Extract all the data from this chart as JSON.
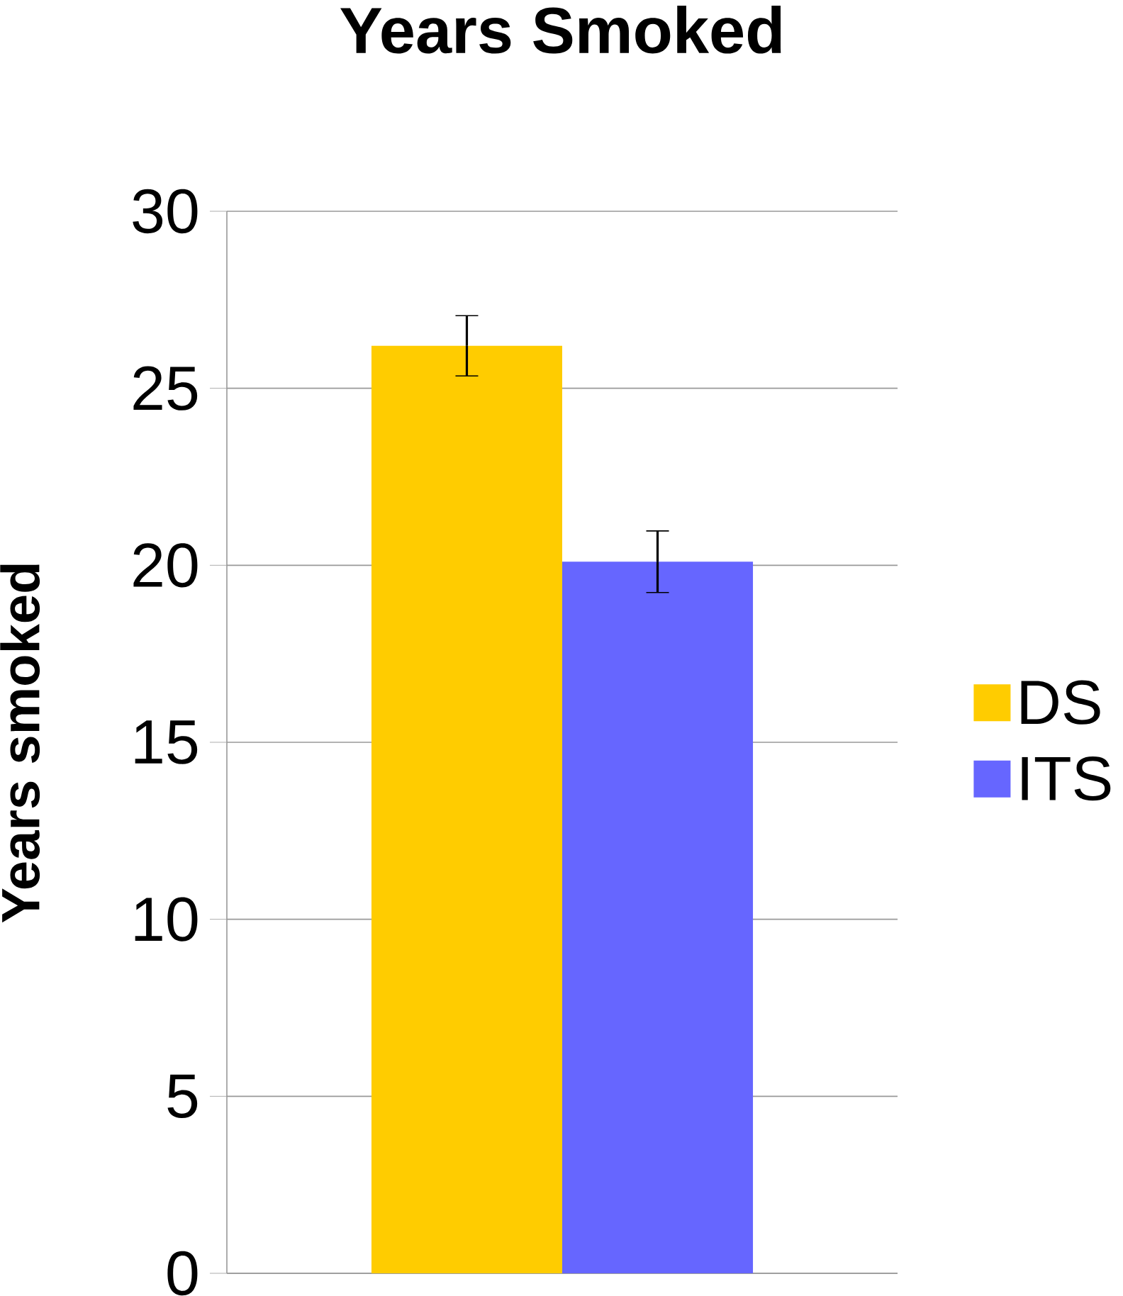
{
  "chart_data": {
    "type": "bar",
    "title": "Years Smoked",
    "ylabel": "Years smoked",
    "categories": [
      null
    ],
    "series": [
      {
        "name": "DS",
        "color": "#ffcc00",
        "values": [
          26.2
        ],
        "errors": [
          0.85
        ]
      },
      {
        "name": "ITS",
        "color": "#6666ff",
        "values": [
          20.1
        ],
        "errors": [
          0.87
        ]
      }
    ],
    "ylim": [
      0,
      30
    ],
    "yticks": [
      0,
      5,
      10,
      15,
      20,
      25,
      30
    ],
    "grid": "y",
    "legend": "right"
  }
}
